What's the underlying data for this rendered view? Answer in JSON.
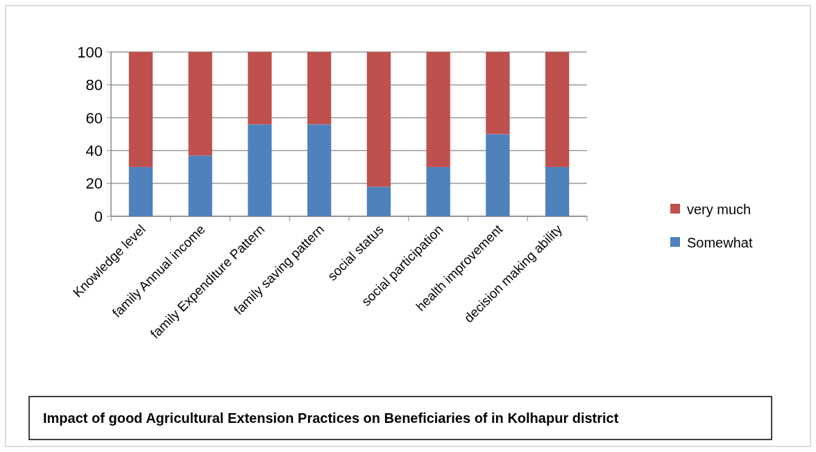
{
  "chart_data": {
    "type": "bar",
    "stacked": true,
    "title": "Impact of good Agricultural Extension  Practices on Beneficiaries of  in Kolhapur district",
    "categories": [
      "Knowledge level",
      "family Annual income",
      "family  Expenditure Pattern",
      "family saving pattern",
      "social status",
      "social participation",
      "health improvement",
      "decision making ability"
    ],
    "series": [
      {
        "name": "Somewhat",
        "color": "#4f81bd",
        "values": [
          30,
          37,
          56,
          56,
          18,
          30,
          50,
          30
        ]
      },
      {
        "name": "very much",
        "color": "#c0504d",
        "values": [
          70,
          63,
          44,
          44,
          82,
          70,
          50,
          70
        ]
      }
    ],
    "ylim": [
      0,
      100
    ],
    "yticks": [
      0,
      20,
      40,
      60,
      80,
      100
    ],
    "grid": "y",
    "legend": "right"
  }
}
